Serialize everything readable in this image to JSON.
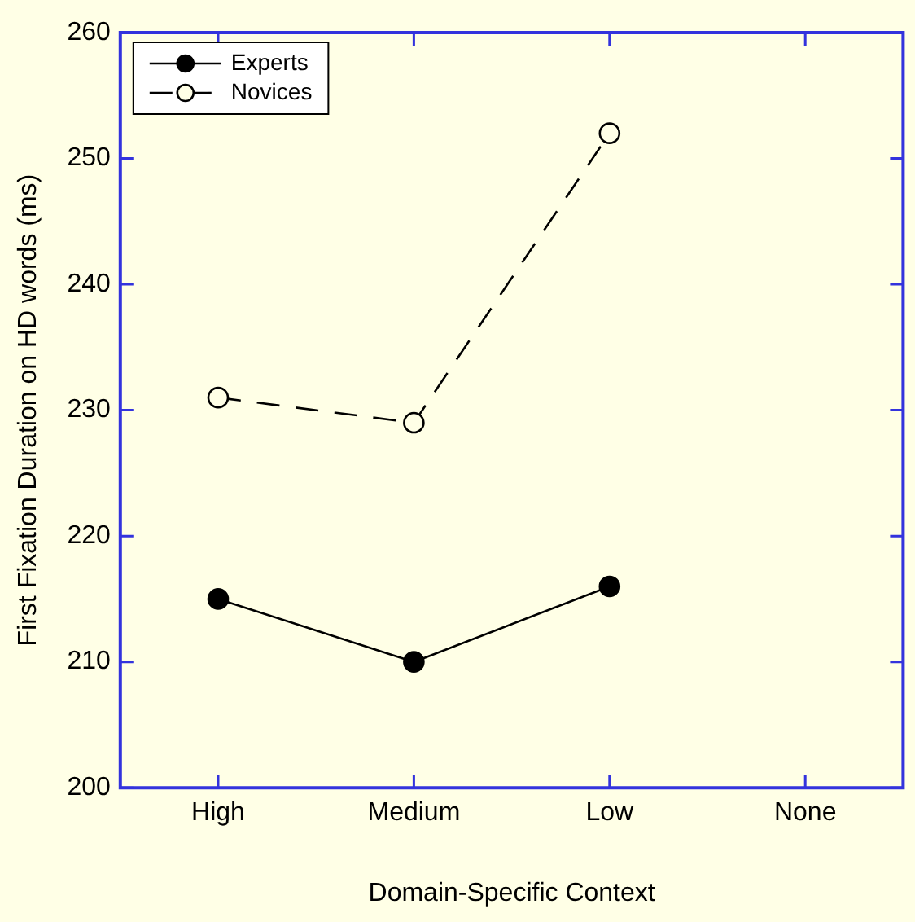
{
  "chart_data": {
    "type": "line",
    "xlabel": "Domain-Specific Context",
    "ylabel": "First Fixation Duration on HD words (ms)",
    "categories": [
      "High",
      "Medium",
      "Low",
      "None"
    ],
    "series": [
      {
        "name": "Experts",
        "color": "#000000",
        "values": [
          215,
          210,
          216,
          null
        ],
        "line_style": "solid"
      },
      {
        "name": "Novices",
        "color": "#000000",
        "values": [
          231,
          229,
          252,
          null
        ],
        "line_style": "dashed"
      }
    ],
    "ylim": [
      200,
      260
    ],
    "yticks": [
      200,
      210,
      220,
      230,
      240,
      250,
      260
    ],
    "grid": false,
    "legend": "top left",
    "marker": "circle"
  }
}
